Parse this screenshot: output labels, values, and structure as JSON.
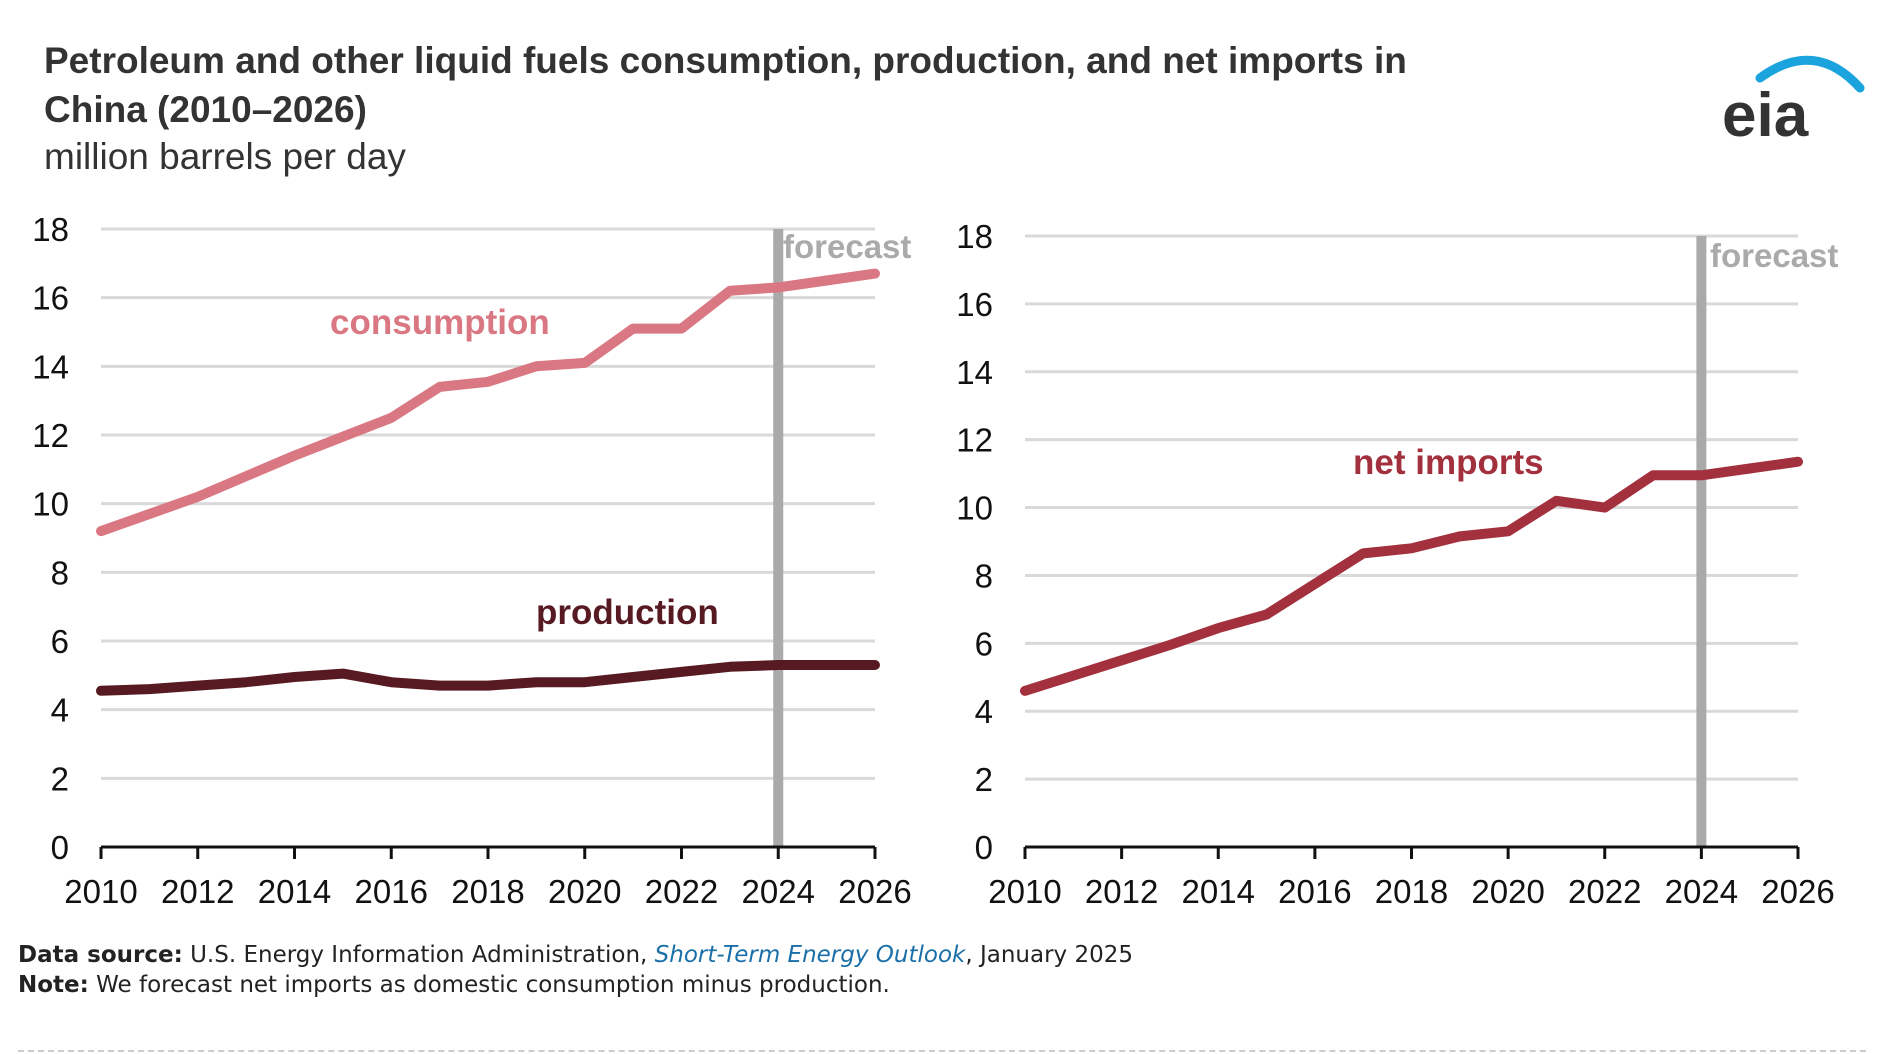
{
  "title": "Petroleum and other liquid fuels consumption, production, and net imports in China (2010–2026)",
  "subtitle": "million barrels per day",
  "logo_text": "eia",
  "footer": {
    "source_label": "Data source:",
    "source_text": "U.S. Energy Information Administration, ",
    "source_link": "Short-Term Energy Outlook",
    "source_date": ", January 2025",
    "note_label": "Note:",
    "note_text": "We forecast net imports as domestic consumption minus production."
  },
  "colors": {
    "consumption": "#d97882",
    "production": "#571a22",
    "net_imports": "#a3303d",
    "forecast": "#aaaaaa",
    "grid": "#d9d9d9"
  },
  "chart_data": [
    {
      "type": "line",
      "x": [
        2010,
        2011,
        2012,
        2013,
        2014,
        2015,
        2016,
        2017,
        2018,
        2019,
        2020,
        2021,
        2022,
        2023,
        2024,
        2025,
        2026
      ],
      "xticks": [
        "2010",
        "2012",
        "2014",
        "2016",
        "2018",
        "2020",
        "2022",
        "2024",
        "2026"
      ],
      "yticks": [
        "0",
        "2",
        "4",
        "6",
        "8",
        "10",
        "12",
        "14",
        "16",
        "18"
      ],
      "ylim": [
        0,
        18
      ],
      "grid": true,
      "forecast_start": 2024,
      "forecast_label": "forecast",
      "series": [
        {
          "name": "consumption",
          "values": [
            9.2,
            9.7,
            10.2,
            10.8,
            11.4,
            11.95,
            12.5,
            13.4,
            13.55,
            14.0,
            14.1,
            15.1,
            15.1,
            16.2,
            16.3,
            16.5,
            16.7
          ]
        },
        {
          "name": "production",
          "values": [
            4.55,
            4.6,
            4.7,
            4.8,
            4.95,
            5.05,
            4.8,
            4.7,
            4.7,
            4.8,
            4.8,
            4.95,
            5.1,
            5.25,
            5.3,
            5.3,
            5.3
          ]
        }
      ]
    },
    {
      "type": "line",
      "x": [
        2010,
        2011,
        2012,
        2013,
        2014,
        2015,
        2016,
        2017,
        2018,
        2019,
        2020,
        2021,
        2022,
        2023,
        2024,
        2025,
        2026
      ],
      "xticks": [
        "2010",
        "2012",
        "2014",
        "2016",
        "2018",
        "2020",
        "2022",
        "2024",
        "2026"
      ],
      "yticks": [
        "0",
        "2",
        "4",
        "6",
        "8",
        "10",
        "12",
        "14",
        "16",
        "18"
      ],
      "ylim": [
        0,
        18
      ],
      "grid": true,
      "forecast_start": 2024,
      "forecast_label": "forecast",
      "series": [
        {
          "name": "net imports",
          "values": [
            4.6,
            5.05,
            5.5,
            5.95,
            6.45,
            6.85,
            7.75,
            8.65,
            8.8,
            9.15,
            9.3,
            10.2,
            10.0,
            10.95,
            10.95,
            11.15,
            11.35
          ]
        }
      ]
    }
  ]
}
